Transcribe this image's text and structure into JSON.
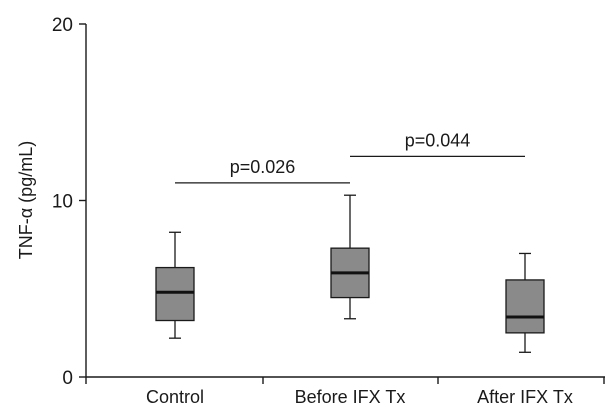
{
  "chart_data": {
    "type": "box",
    "ylabel": "TNF-α (pg/mL)",
    "ylim": [
      0,
      20
    ],
    "yticks": [
      0,
      10,
      20
    ],
    "categories": [
      "Control",
      "Before IFX Tx",
      "After IFX Tx"
    ],
    "boxes": [
      {
        "min": 2.2,
        "q1": 3.2,
        "median": 4.8,
        "q3": 6.2,
        "max": 8.2
      },
      {
        "min": 3.3,
        "q1": 4.5,
        "median": 5.9,
        "q3": 7.3,
        "max": 10.3
      },
      {
        "min": 1.4,
        "q1": 2.5,
        "median": 3.4,
        "q3": 5.5,
        "max": 7.0
      }
    ],
    "annotations": [
      {
        "label": "p=0.026",
        "from": 0,
        "to": 1,
        "y": 11.0
      },
      {
        "label": "p=0.044",
        "from": 1,
        "to": 2,
        "y": 12.5
      }
    ],
    "box_color": "#8a8a8a",
    "grid": false,
    "legend": "none"
  }
}
